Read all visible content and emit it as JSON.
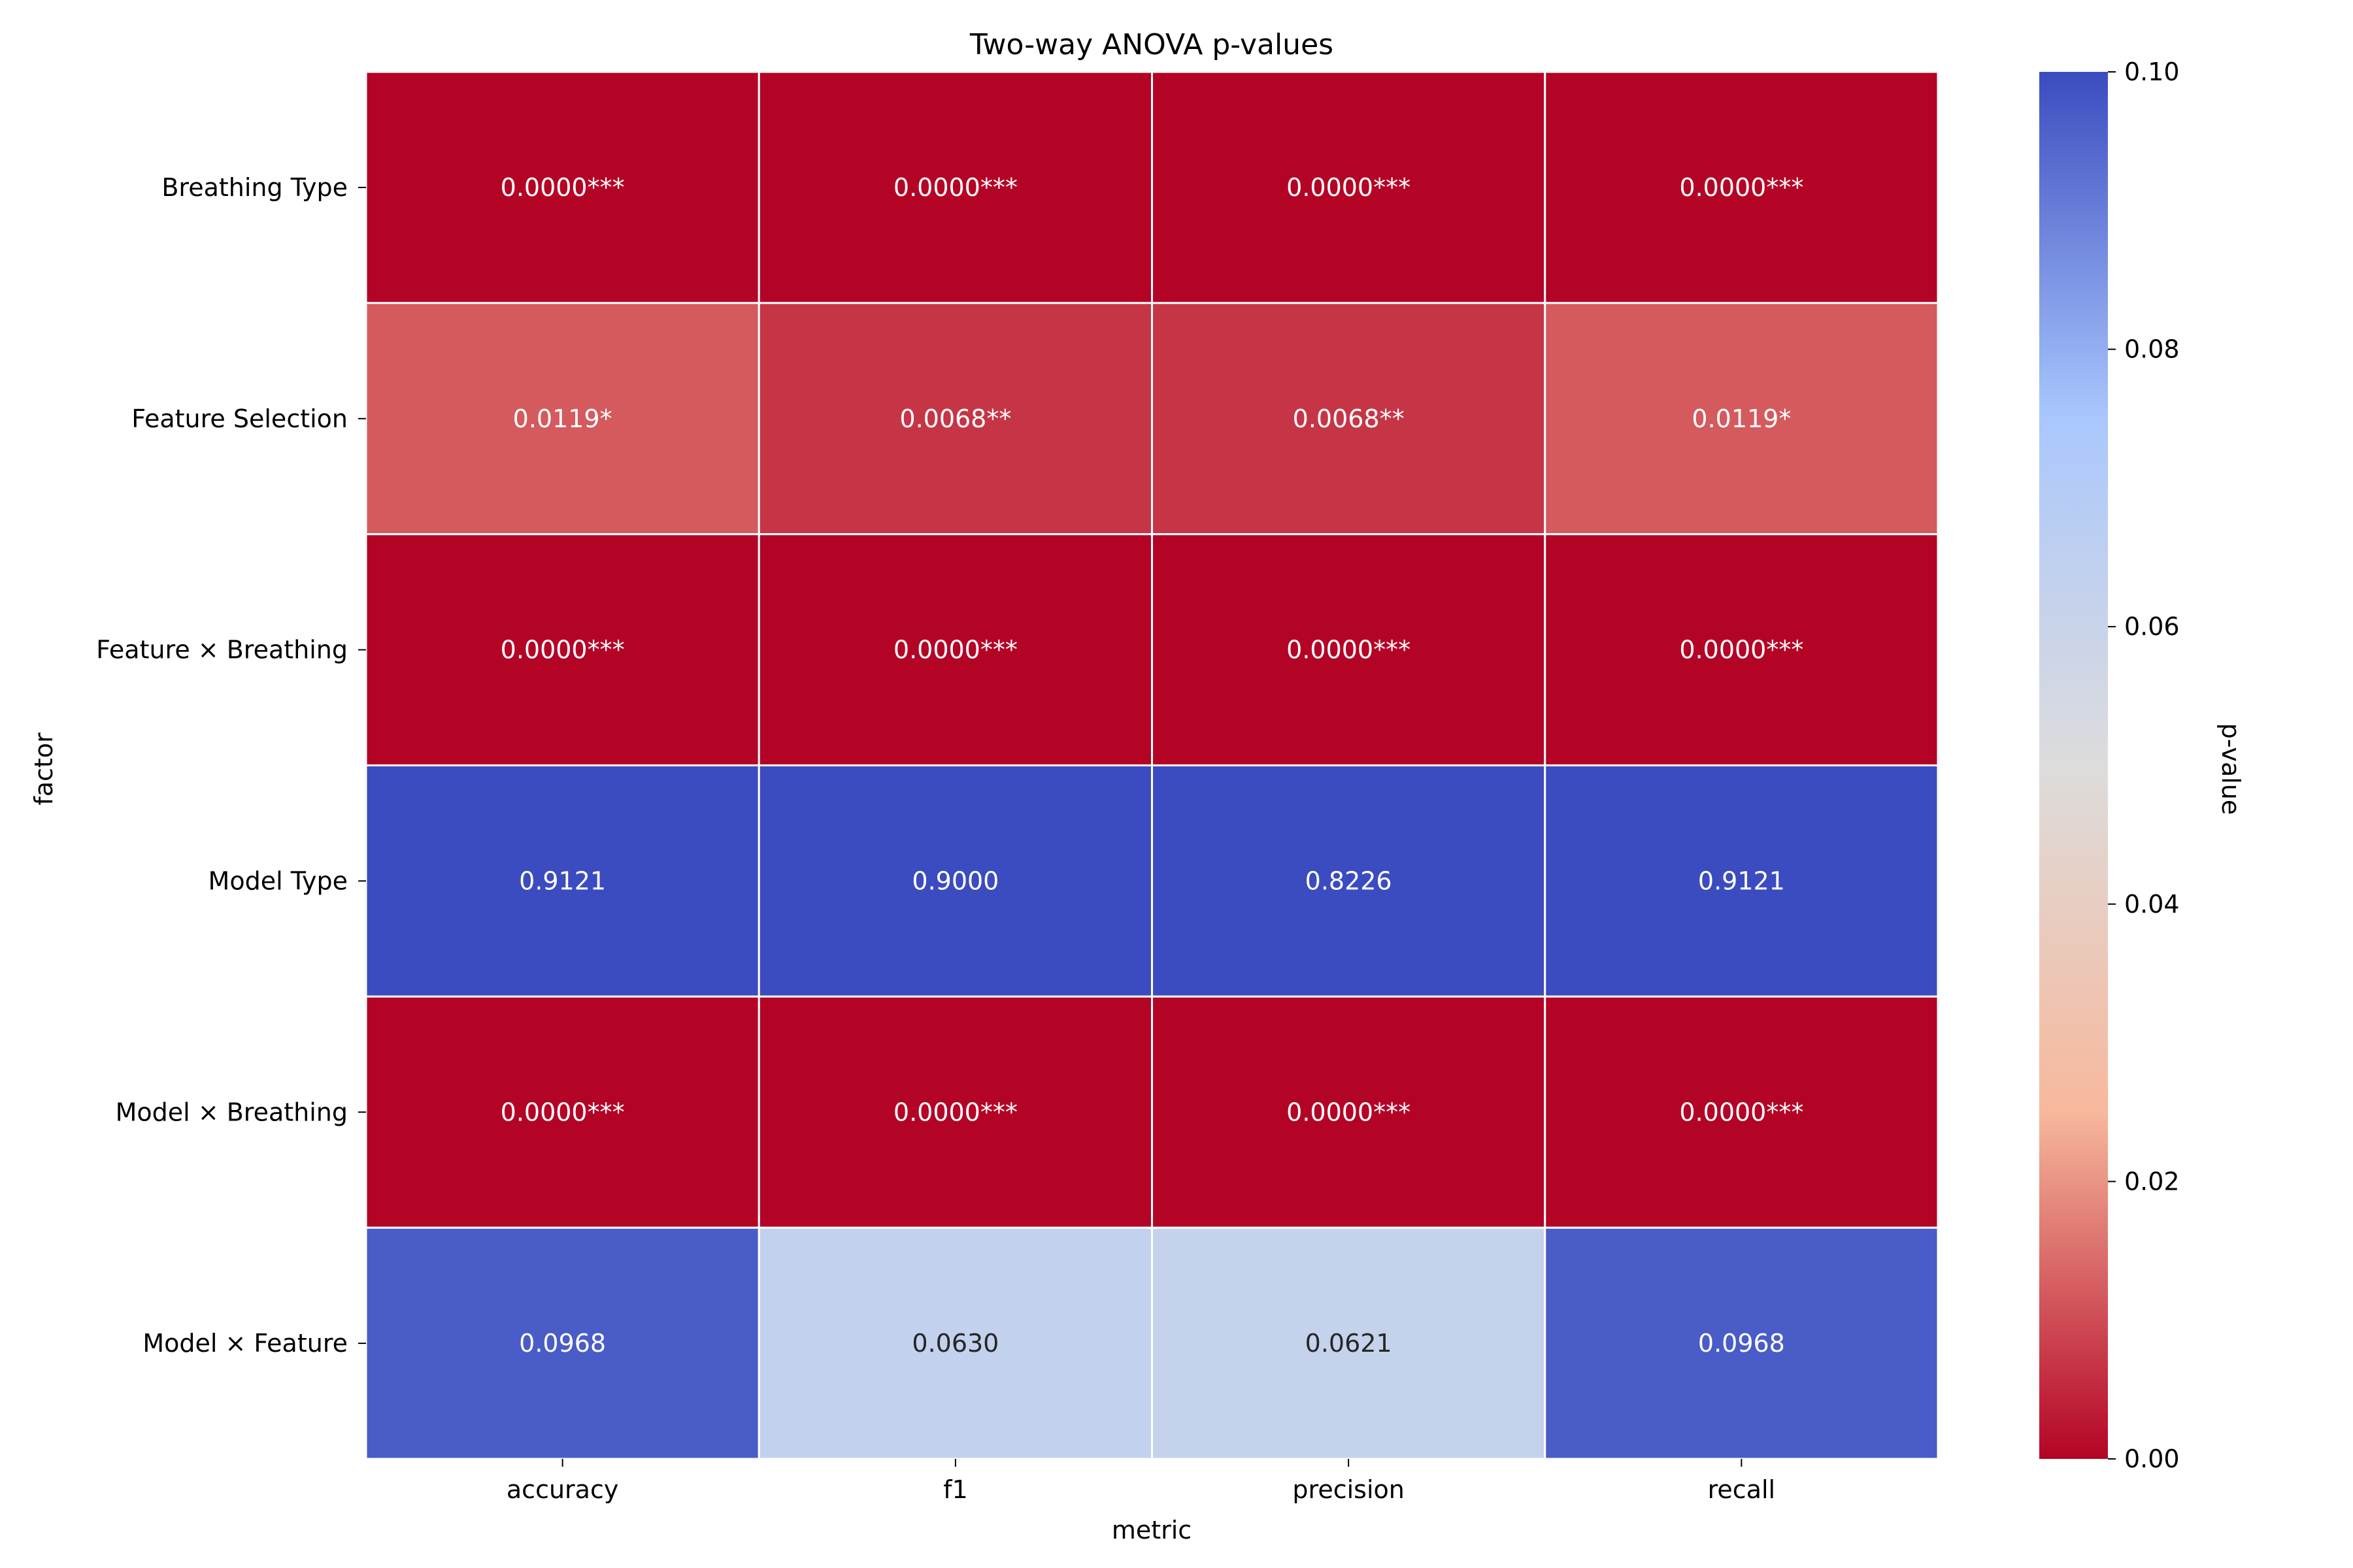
{
  "chart_data": {
    "type": "heatmap",
    "title": "Two-way ANOVA p-values",
    "xlabel": "metric",
    "ylabel": "factor",
    "columns": [
      "accuracy",
      "f1",
      "precision",
      "recall"
    ],
    "rows": [
      "Breathing Type",
      "Feature Selection",
      "Feature × Breathing",
      "Model Type",
      "Model × Breathing",
      "Model × Feature"
    ],
    "values": [
      [
        0.0,
        0.0,
        0.0,
        0.0
      ],
      [
        0.0119,
        0.0068,
        0.0068,
        0.0119
      ],
      [
        0.0,
        0.0,
        0.0,
        0.0
      ],
      [
        0.9121,
        0.9,
        0.8226,
        0.9121
      ],
      [
        0.0,
        0.0,
        0.0,
        0.0
      ],
      [
        0.0968,
        0.063,
        0.0621,
        0.0968
      ]
    ],
    "annotations": [
      [
        "0.0000***",
        "0.0000***",
        "0.0000***",
        "0.0000***"
      ],
      [
        "0.0119*",
        "0.0068**",
        "0.0068**",
        "0.0119*"
      ],
      [
        "0.0000***",
        "0.0000***",
        "0.0000***",
        "0.0000***"
      ],
      [
        "0.9121",
        "0.9000",
        "0.8226",
        "0.9121"
      ],
      [
        "0.0000***",
        "0.0000***",
        "0.0000***",
        "0.0000***"
      ],
      [
        "0.0968",
        "0.0630",
        "0.0621",
        "0.0968"
      ]
    ],
    "colorbar": {
      "label": "p-value",
      "vmin": 0.0,
      "vmax": 0.1,
      "ticks": [
        "0.00",
        "0.02",
        "0.04",
        "0.06",
        "0.08",
        "0.10"
      ],
      "colormap": "coolwarm_r",
      "colors": [
        "#b40426",
        "#f7b89c",
        "#dddcdc",
        "#aac7fd",
        "#3b4cc0"
      ]
    },
    "grid": false,
    "cell_border_color": "#ffffff"
  }
}
